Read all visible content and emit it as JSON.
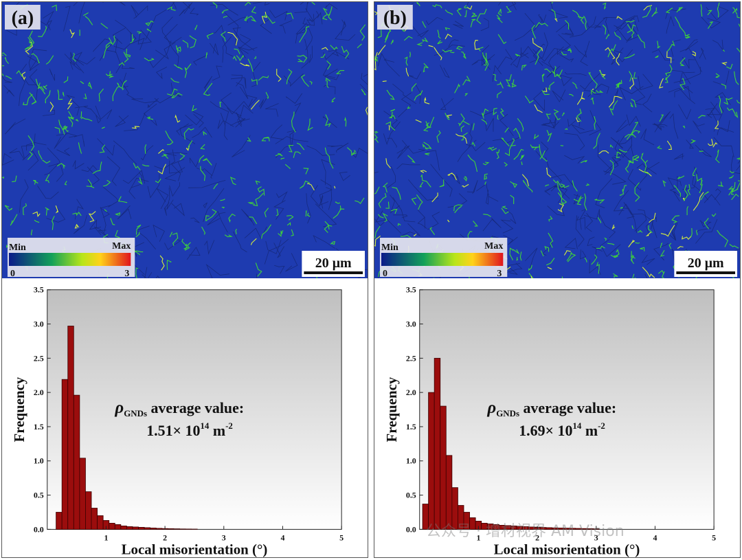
{
  "panels": [
    {
      "label": "(a)",
      "colorbar": {
        "min_label": "Min",
        "max_label": "Max",
        "min_value": "0",
        "max_value": "3"
      },
      "scale_bar": "20 μm",
      "chart_data": {
        "type": "bar",
        "xlabel": "Local misorientation (°)",
        "ylabel": "Frequency",
        "xlim": [
          0,
          5
        ],
        "ylim": [
          0,
          3.5
        ],
        "xticks": [
          "1",
          "2",
          "3",
          "4",
          "5"
        ],
        "yticks": [
          "0.0",
          "0.5",
          "1.0",
          "1.5",
          "2.0",
          "2.5",
          "3.0",
          "3.5"
        ],
        "bin_width": 0.1,
        "x": [
          0.2,
          0.3,
          0.4,
          0.5,
          0.6,
          0.7,
          0.8,
          0.9,
          1.0,
          1.1,
          1.2,
          1.3,
          1.4,
          1.5,
          1.6,
          1.7,
          1.8,
          1.9,
          2.0,
          2.1,
          2.2,
          2.3,
          2.4,
          2.5
        ],
        "values": [
          0.25,
          2.19,
          2.97,
          1.96,
          1.04,
          0.55,
          0.31,
          0.2,
          0.13,
          0.09,
          0.07,
          0.05,
          0.04,
          0.035,
          0.03,
          0.025,
          0.02,
          0.015,
          0.012,
          0.01,
          0.008,
          0.006,
          0.005,
          0.004
        ],
        "annotation": {
          "symbol": "ρ",
          "subscript": "GNDs",
          "text": "average value:",
          "mantissa": "1.51× 10",
          "exponent": "14",
          "unit": "m",
          "unit_exp": "-2"
        }
      }
    },
    {
      "label": "(b)",
      "colorbar": {
        "min_label": "Min",
        "max_label": "Max",
        "min_value": "0",
        "max_value": "3"
      },
      "scale_bar": "20 μm",
      "chart_data": {
        "type": "bar",
        "xlabel": "Local misorientation (°)",
        "ylabel": "Frequency",
        "xlim": [
          0,
          5
        ],
        "ylim": [
          0,
          3.5
        ],
        "xticks": [
          "1",
          "2",
          "3",
          "4",
          "5"
        ],
        "yticks": [
          "0.0",
          "0.5",
          "1.0",
          "1.5",
          "2.0",
          "2.5",
          "3.0",
          "3.5"
        ],
        "bin_width": 0.1,
        "x": [
          0.1,
          0.2,
          0.3,
          0.4,
          0.5,
          0.6,
          0.7,
          0.8,
          0.9,
          1.0,
          1.1,
          1.2,
          1.3,
          1.4,
          1.5,
          1.6,
          1.7,
          1.8,
          1.9,
          2.0,
          2.1,
          2.2,
          2.3,
          2.4,
          2.5,
          2.6,
          2.7,
          2.8,
          2.9,
          3.0
        ],
        "values": [
          0.37,
          2.0,
          2.5,
          1.8,
          1.08,
          0.61,
          0.35,
          0.25,
          0.17,
          0.12,
          0.09,
          0.08,
          0.07,
          0.06,
          0.055,
          0.05,
          0.045,
          0.04,
          0.035,
          0.03,
          0.028,
          0.025,
          0.022,
          0.02,
          0.018,
          0.016,
          0.014,
          0.012,
          0.01,
          0.008
        ],
        "annotation": {
          "symbol": "ρ",
          "subscript": "GNDs",
          "text": "average value:",
          "mantissa": "1.69× 10",
          "exponent": "14",
          "unit": "m",
          "unit_exp": "-2"
        }
      }
    }
  ],
  "watermark": "公众号 · 增材视界 AM Vision",
  "colors": {
    "bar_fill": "#9b0d0d",
    "bar_stroke": "#3a0000",
    "map_base": "#1e3bb0",
    "boundary": "#3fd33a"
  }
}
